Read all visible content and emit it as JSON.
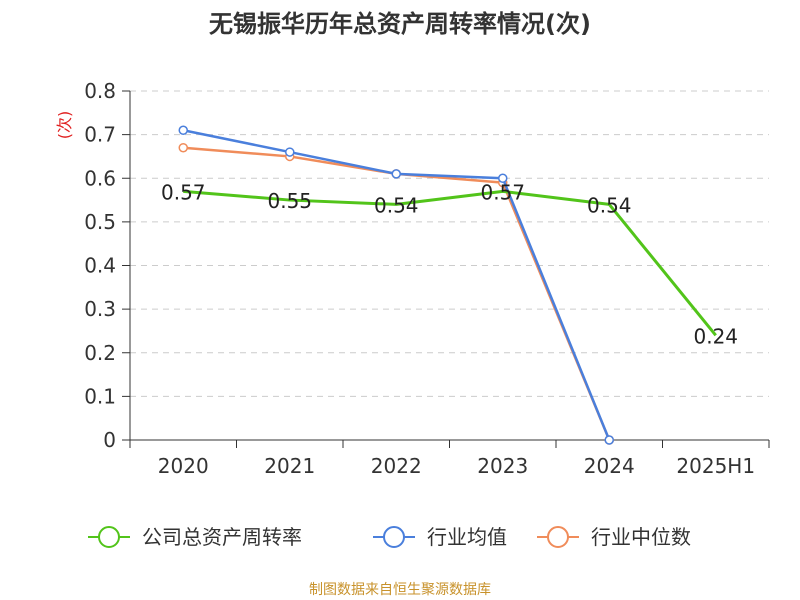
{
  "chart_data": {
    "type": "line",
    "title": "无锡振华历年总资产周转率情况(次)",
    "ylabel": "(次)",
    "xlabel": "",
    "categories": [
      "2020",
      "2021",
      "2022",
      "2023",
      "2024",
      "2025H1"
    ],
    "y_ticks": [
      "0",
      "0.1",
      "0.2",
      "0.3",
      "0.4",
      "0.5",
      "0.6",
      "0.7",
      "0.8"
    ],
    "ylim": [
      0,
      0.8
    ],
    "grid": true,
    "legend_position": "bottom",
    "series": [
      {
        "name": "公司总资产周转率",
        "color": "#52c41a",
        "values": [
          0.57,
          0.55,
          0.54,
          0.57,
          0.54,
          0.24
        ],
        "labels": [
          "0.57",
          "0.55",
          "0.54",
          "0.57",
          "0.54",
          "0.24"
        ]
      },
      {
        "name": "行业均值",
        "color": "#4a7fdc",
        "values": [
          0.71,
          0.66,
          0.61,
          0.6,
          0.0,
          null
        ]
      },
      {
        "name": "行业中位数",
        "color": "#f08c5a",
        "values": [
          0.67,
          0.65,
          0.61,
          0.59,
          0.0,
          null
        ]
      }
    ]
  },
  "source": "制图数据来自恒生聚源数据库"
}
